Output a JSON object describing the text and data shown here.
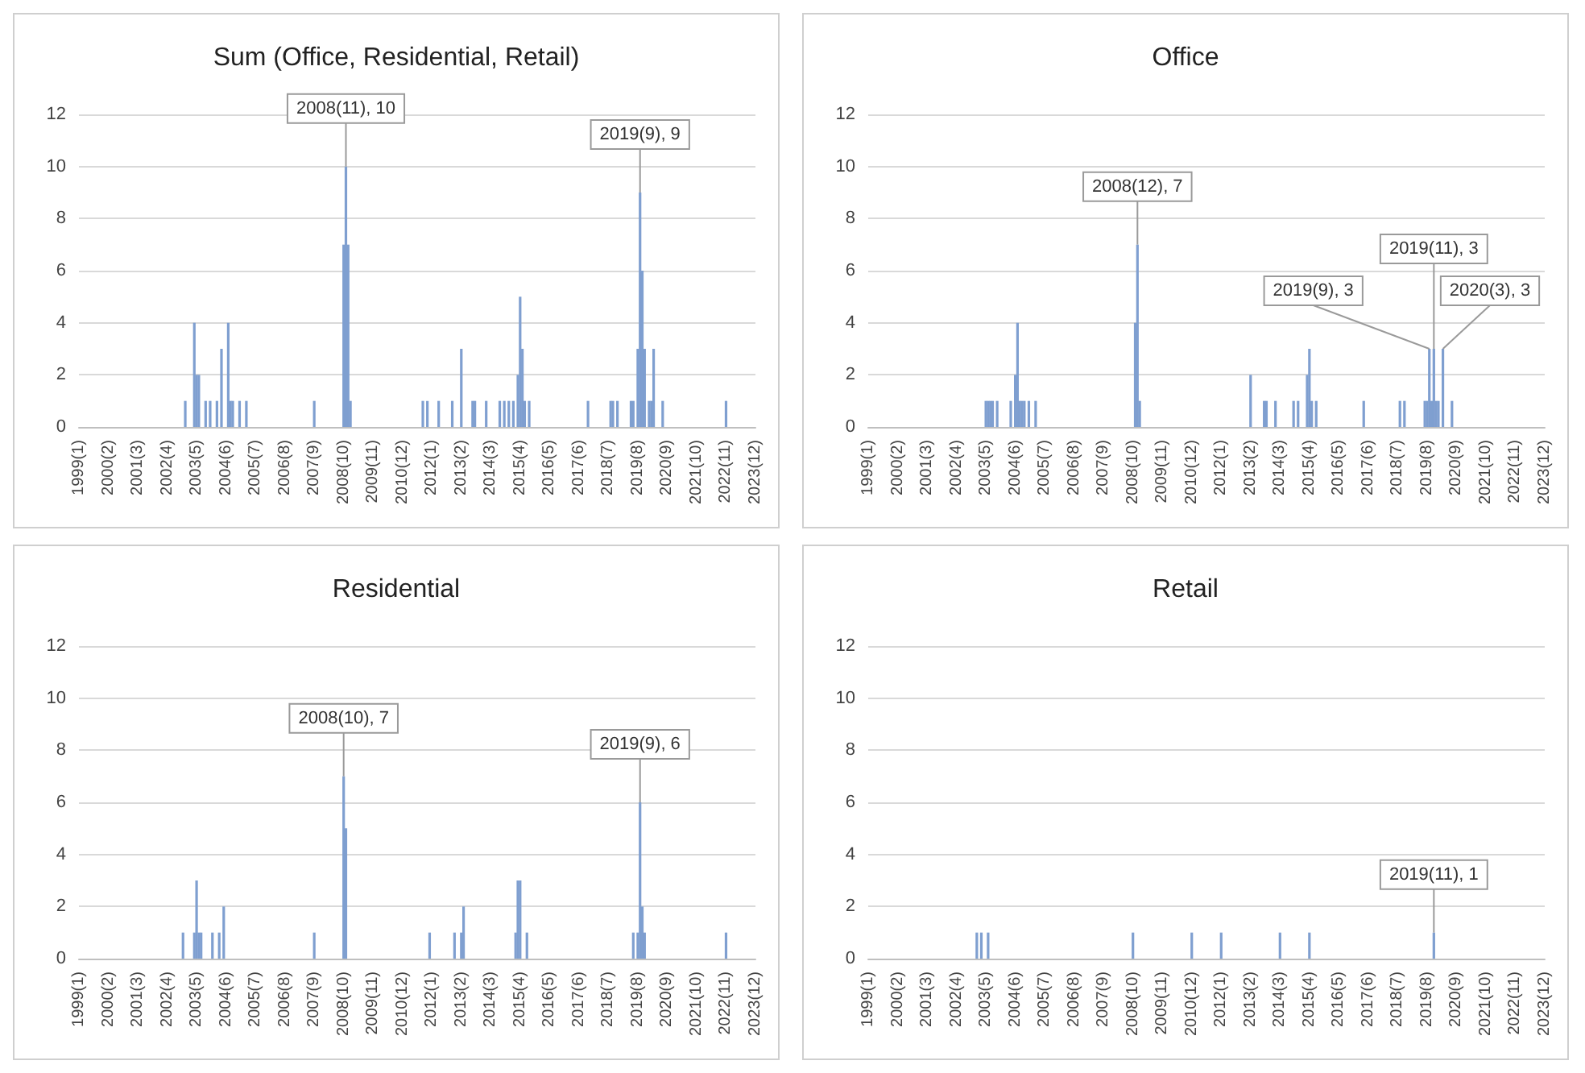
{
  "chart_data": [
    {
      "type": "bar",
      "title": "Sum (Office, Residential, Retail)",
      "color": "#7f9fd0",
      "grid": "y",
      "x": [
        "2002-12",
        "2003-04",
        "2003-05",
        "2003-06",
        "2003-09",
        "2003-11",
        "2004-02",
        "2004-04",
        "2004-07",
        "2004-08",
        "2004-09",
        "2004-12",
        "2005-03",
        "2007-09",
        "2008-10",
        "2008-11",
        "2008-12",
        "2009-01",
        "2011-09",
        "2011-11",
        "2012-04",
        "2012-10",
        "2013-02",
        "2013-07",
        "2013-08",
        "2014-01",
        "2014-07",
        "2014-09",
        "2014-11",
        "2015-01",
        "2015-03",
        "2015-04",
        "2015-05",
        "2015-06",
        "2015-08",
        "2017-10",
        "2018-08",
        "2018-09",
        "2018-11",
        "2019-05",
        "2019-06",
        "2019-08",
        "2019-09",
        "2019-10",
        "2019-11",
        "2020-01",
        "2020-02",
        "2020-03",
        "2020-07",
        "2022-11"
      ],
      "values": [
        1,
        4,
        2,
        2,
        1,
        1,
        1,
        3,
        4,
        1,
        1,
        1,
        1,
        1,
        7,
        10,
        7,
        1,
        1,
        1,
        1,
        1,
        3,
        1,
        1,
        1,
        1,
        1,
        1,
        1,
        2,
        5,
        3,
        1,
        1,
        1,
        1,
        1,
        1,
        1,
        1,
        3,
        9,
        6,
        3,
        1,
        1,
        3,
        1,
        1
      ],
      "xlim": [
        "1999-01",
        "2023-12"
      ],
      "xticks": [
        {
          "value": "1999-01",
          "label": "1999(1)"
        },
        {
          "value": "2000-02",
          "label": "2000(2)"
        },
        {
          "value": "2001-03",
          "label": "2001(3)"
        },
        {
          "value": "2002-04",
          "label": "2002(4)"
        },
        {
          "value": "2003-05",
          "label": "2003(5)"
        },
        {
          "value": "2004-06",
          "label": "2004(6)"
        },
        {
          "value": "2005-07",
          "label": "2005(7)"
        },
        {
          "value": "2006-08",
          "label": "2006(8)"
        },
        {
          "value": "2007-09",
          "label": "2007(9)"
        },
        {
          "value": "2008-10",
          "label": "2008(10)"
        },
        {
          "value": "2009-11",
          "label": "2009(11)"
        },
        {
          "value": "2010-12",
          "label": "2010(12)"
        },
        {
          "value": "2012-01",
          "label": "2012(1)"
        },
        {
          "value": "2013-02",
          "label": "2013(2)"
        },
        {
          "value": "2014-03",
          "label": "2014(3)"
        },
        {
          "value": "2015-04",
          "label": "2015(4)"
        },
        {
          "value": "2016-05",
          "label": "2016(5)"
        },
        {
          "value": "2017-06",
          "label": "2017(6)"
        },
        {
          "value": "2018-07",
          "label": "2018(7)"
        },
        {
          "value": "2019-08",
          "label": "2019(8)"
        },
        {
          "value": "2020-09",
          "label": "2020(9)"
        },
        {
          "value": "2021-10",
          "label": "2021(10)"
        },
        {
          "value": "2022-11",
          "label": "2022(11)"
        },
        {
          "value": "2023-12",
          "label": "2023(12)"
        }
      ],
      "ylim": [
        0,
        12
      ],
      "yticks": [
        0,
        2,
        4,
        6,
        8,
        10,
        12
      ],
      "annotations": [
        {
          "text": "2008(11), 10",
          "x": "2008-11",
          "y": 10
        },
        {
          "text": "2019(9), 9",
          "x": "2019-09",
          "y": 9
        }
      ]
    },
    {
      "type": "bar",
      "title": "Office",
      "color": "#7f9fd0",
      "grid": "y",
      "x": [
        "2003-05",
        "2003-06",
        "2003-07",
        "2003-08",
        "2003-10",
        "2004-04",
        "2004-06",
        "2004-07",
        "2004-08",
        "2004-09",
        "2004-10",
        "2004-12",
        "2005-03",
        "2008-11",
        "2008-12",
        "2009-01",
        "2013-02",
        "2013-08",
        "2013-09",
        "2014-01",
        "2014-09",
        "2014-11",
        "2015-03",
        "2015-04",
        "2015-05",
        "2015-07",
        "2017-04",
        "2018-08",
        "2018-10",
        "2019-07",
        "2019-08",
        "2019-09",
        "2019-10",
        "2019-11",
        "2019-12",
        "2020-01",
        "2020-03",
        "2020-07"
      ],
      "values": [
        1,
        1,
        1,
        1,
        1,
        1,
        2,
        4,
        1,
        1,
        1,
        1,
        1,
        4,
        7,
        1,
        2,
        1,
        1,
        1,
        1,
        1,
        2,
        3,
        1,
        1,
        1,
        1,
        1,
        1,
        1,
        3,
        1,
        3,
        1,
        1,
        3,
        1
      ],
      "xlim": [
        "1999-01",
        "2023-12"
      ],
      "xticks": [
        {
          "value": "1999-01",
          "label": "1999(1)"
        },
        {
          "value": "2000-02",
          "label": "2000(2)"
        },
        {
          "value": "2001-03",
          "label": "2001(3)"
        },
        {
          "value": "2002-04",
          "label": "2002(4)"
        },
        {
          "value": "2003-05",
          "label": "2003(5)"
        },
        {
          "value": "2004-06",
          "label": "2004(6)"
        },
        {
          "value": "2005-07",
          "label": "2005(7)"
        },
        {
          "value": "2006-08",
          "label": "2006(8)"
        },
        {
          "value": "2007-09",
          "label": "2007(9)"
        },
        {
          "value": "2008-10",
          "label": "2008(10)"
        },
        {
          "value": "2009-11",
          "label": "2009(11)"
        },
        {
          "value": "2010-12",
          "label": "2010(12)"
        },
        {
          "value": "2012-01",
          "label": "2012(1)"
        },
        {
          "value": "2013-02",
          "label": "2013(2)"
        },
        {
          "value": "2014-03",
          "label": "2014(3)"
        },
        {
          "value": "2015-04",
          "label": "2015(4)"
        },
        {
          "value": "2016-05",
          "label": "2016(5)"
        },
        {
          "value": "2017-06",
          "label": "2017(6)"
        },
        {
          "value": "2018-07",
          "label": "2018(7)"
        },
        {
          "value": "2019-08",
          "label": "2019(8)"
        },
        {
          "value": "2020-09",
          "label": "2020(9)"
        },
        {
          "value": "2021-10",
          "label": "2021(10)"
        },
        {
          "value": "2022-11",
          "label": "2022(11)"
        },
        {
          "value": "2023-12",
          "label": "2023(12)"
        }
      ],
      "ylim": [
        0,
        12
      ],
      "yticks": [
        0,
        2,
        4,
        6,
        8,
        10,
        12
      ],
      "annotations": [
        {
          "text": "2008(12), 7",
          "x": "2008-12",
          "y": 7
        },
        {
          "text": "2019(9), 3",
          "x": "2019-09",
          "y": 3
        },
        {
          "text": "2019(11), 3",
          "x": "2019-11",
          "y": 3
        },
        {
          "text": "2020(3), 3",
          "x": "2020-03",
          "y": 3
        }
      ]
    },
    {
      "type": "bar",
      "title": "Residential",
      "color": "#7f9fd0",
      "grid": "y",
      "x": [
        "2002-11",
        "2003-04",
        "2003-05",
        "2003-06",
        "2003-07",
        "2003-12",
        "2004-03",
        "2004-05",
        "2007-09",
        "2008-10",
        "2008-11",
        "2011-12",
        "2012-11",
        "2013-02",
        "2013-03",
        "2015-02",
        "2015-03",
        "2015-04",
        "2015-07",
        "2019-06",
        "2019-08",
        "2019-09",
        "2019-10",
        "2019-11",
        "2022-11"
      ],
      "values": [
        1,
        1,
        3,
        1,
        1,
        1,
        1,
        2,
        1,
        7,
        5,
        1,
        1,
        1,
        2,
        1,
        3,
        3,
        1,
        1,
        1,
        6,
        2,
        1,
        1
      ],
      "xlim": [
        "1999-01",
        "2023-12"
      ],
      "xticks": [
        {
          "value": "1999-01",
          "label": "1999(1)"
        },
        {
          "value": "2000-02",
          "label": "2000(2)"
        },
        {
          "value": "2001-03",
          "label": "2001(3)"
        },
        {
          "value": "2002-04",
          "label": "2002(4)"
        },
        {
          "value": "2003-05",
          "label": "2003(5)"
        },
        {
          "value": "2004-06",
          "label": "2004(6)"
        },
        {
          "value": "2005-07",
          "label": "2005(7)"
        },
        {
          "value": "2006-08",
          "label": "2006(8)"
        },
        {
          "value": "2007-09",
          "label": "2007(9)"
        },
        {
          "value": "2008-10",
          "label": "2008(10)"
        },
        {
          "value": "2009-11",
          "label": "2009(11)"
        },
        {
          "value": "2010-12",
          "label": "2010(12)"
        },
        {
          "value": "2012-01",
          "label": "2012(1)"
        },
        {
          "value": "2013-02",
          "label": "2013(2)"
        },
        {
          "value": "2014-03",
          "label": "2014(3)"
        },
        {
          "value": "2015-04",
          "label": "2015(4)"
        },
        {
          "value": "2016-05",
          "label": "2016(5)"
        },
        {
          "value": "2017-06",
          "label": "2017(6)"
        },
        {
          "value": "2018-07",
          "label": "2018(7)"
        },
        {
          "value": "2019-08",
          "label": "2019(8)"
        },
        {
          "value": "2020-09",
          "label": "2020(9)"
        },
        {
          "value": "2021-10",
          "label": "2021(10)"
        },
        {
          "value": "2022-11",
          "label": "2022(11)"
        },
        {
          "value": "2023-12",
          "label": "2023(12)"
        }
      ],
      "ylim": [
        0,
        12
      ],
      "yticks": [
        0,
        2,
        4,
        6,
        8,
        10,
        12
      ],
      "annotations": [
        {
          "text": "2008(10), 7",
          "x": "2008-10",
          "y": 7
        },
        {
          "text": "2019(9), 6",
          "x": "2019-09",
          "y": 6
        }
      ]
    },
    {
      "type": "bar",
      "title": "Retail",
      "color": "#7f9fd0",
      "grid": "y",
      "x": [
        "2003-01",
        "2003-03",
        "2003-06",
        "2008-10",
        "2010-12",
        "2012-01",
        "2014-03",
        "2015-04",
        "2019-11"
      ],
      "values": [
        1,
        1,
        1,
        1,
        1,
        1,
        1,
        1,
        1
      ],
      "xlim": [
        "1999-01",
        "2023-12"
      ],
      "xticks": [
        {
          "value": "1999-01",
          "label": "1999(1)"
        },
        {
          "value": "2000-02",
          "label": "2000(2)"
        },
        {
          "value": "2001-03",
          "label": "2001(3)"
        },
        {
          "value": "2002-04",
          "label": "2002(4)"
        },
        {
          "value": "2003-05",
          "label": "2003(5)"
        },
        {
          "value": "2004-06",
          "label": "2004(6)"
        },
        {
          "value": "2005-07",
          "label": "2005(7)"
        },
        {
          "value": "2006-08",
          "label": "2006(8)"
        },
        {
          "value": "2007-09",
          "label": "2007(9)"
        },
        {
          "value": "2008-10",
          "label": "2008(10)"
        },
        {
          "value": "2009-11",
          "label": "2009(11)"
        },
        {
          "value": "2010-12",
          "label": "2010(12)"
        },
        {
          "value": "2012-01",
          "label": "2012(1)"
        },
        {
          "value": "2013-02",
          "label": "2013(2)"
        },
        {
          "value": "2014-03",
          "label": "2014(3)"
        },
        {
          "value": "2015-04",
          "label": "2015(4)"
        },
        {
          "value": "2016-05",
          "label": "2016(5)"
        },
        {
          "value": "2017-06",
          "label": "2017(6)"
        },
        {
          "value": "2018-07",
          "label": "2018(7)"
        },
        {
          "value": "2019-08",
          "label": "2019(8)"
        },
        {
          "value": "2020-09",
          "label": "2020(9)"
        },
        {
          "value": "2021-10",
          "label": "2021(10)"
        },
        {
          "value": "2022-11",
          "label": "2022(11)"
        },
        {
          "value": "2023-12",
          "label": "2023(12)"
        }
      ],
      "ylim": [
        0,
        12
      ],
      "yticks": [
        0,
        2,
        4,
        6,
        8,
        10,
        12
      ],
      "annotations": [
        {
          "text": "2019(11), 1",
          "x": "2019-11",
          "y": 1
        }
      ]
    }
  ]
}
